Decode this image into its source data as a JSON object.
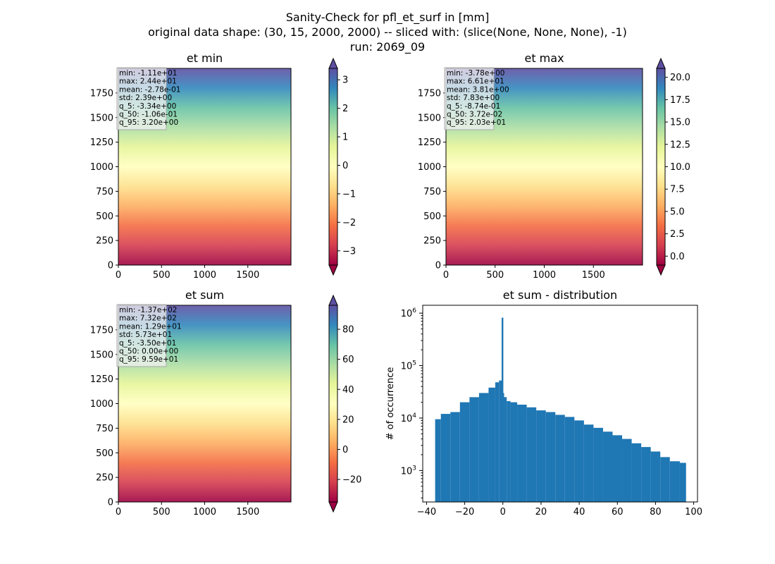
{
  "figure": {
    "suptitle": [
      "Sanity-Check for pfl_et_surf in [mm]",
      "original data shape: (30, 15, 2000, 2000) -- sliced with: (slice(None, None, None), -1)",
      "run: 2069_09"
    ]
  },
  "colors": {
    "colormap": "Spectral",
    "histogram_bar": "#1f77b4",
    "axes": "#000000"
  },
  "chart_data": [
    {
      "type": "heatmap",
      "title": "et min",
      "colormap": "Spectral",
      "xlim": [
        0,
        2000
      ],
      "ylim": [
        0,
        2000
      ],
      "xticks": [
        0,
        500,
        1000,
        1500
      ],
      "yticks": [
        0,
        250,
        500,
        750,
        1000,
        1250,
        1500,
        1750
      ],
      "colorbar": {
        "vmin": -3.5,
        "vmax": 3.4,
        "ticks": [
          -3,
          -2,
          -1,
          0,
          1,
          2,
          3
        ],
        "extend": "both"
      },
      "stats": [
        "min: -1.11e+01",
        "max: 2.44e+01",
        "mean: -2.78e-01",
        "std: 2.39e+00",
        "q_5: -3.34e+00",
        "q_50: -1.06e-01",
        "q_95: 3.20e+00"
      ]
    },
    {
      "type": "heatmap",
      "title": "et max",
      "colormap": "Spectral",
      "xlim": [
        0,
        2000
      ],
      "ylim": [
        0,
        2000
      ],
      "xticks": [
        0,
        500,
        1000,
        1500
      ],
      "yticks": [
        0,
        250,
        500,
        750,
        1000,
        1250,
        1500,
        1750
      ],
      "colorbar": {
        "vmin": -1.0,
        "vmax": 21.0,
        "ticks": [
          0.0,
          2.5,
          5.0,
          7.5,
          10.0,
          12.5,
          15.0,
          17.5,
          20.0
        ],
        "tick_labels": [
          "0.0",
          "2.5",
          "5.0",
          "7.5",
          "10.0",
          "12.5",
          "15.0",
          "17.5",
          "20.0"
        ],
        "extend": "both"
      },
      "stats": [
        "min: -3.78e+00",
        "max: 6.61e+01",
        "mean: 3.81e+00",
        "std: 7.83e+00",
        "q_5: -8.74e-01",
        "q_50: 3.72e-02",
        "q_95: 2.03e+01"
      ]
    },
    {
      "type": "heatmap",
      "title": "et sum",
      "colormap": "Spectral",
      "xlim": [
        0,
        2000
      ],
      "ylim": [
        0,
        2000
      ],
      "xticks": [
        0,
        500,
        1000,
        1500
      ],
      "yticks": [
        0,
        250,
        500,
        750,
        1000,
        1250,
        1500,
        1750
      ],
      "colorbar": {
        "vmin": -35,
        "vmax": 96,
        "ticks": [
          -20,
          0,
          20,
          40,
          60,
          80
        ],
        "extend": "both"
      },
      "stats": [
        "min: -1.37e+02",
        "max: 7.32e+02",
        "mean: 1.29e+01",
        "std: 5.73e+01",
        "q_5: -3.50e+01",
        "q_50: 0.00e+00",
        "q_95: 9.59e+01"
      ]
    },
    {
      "type": "bar",
      "title": "et sum - distribution",
      "ylabel": "# of occurrence",
      "yscale": "log",
      "xlim": [
        -42,
        102
      ],
      "ylim_log10": [
        2.4,
        6.15
      ],
      "xticks": [
        -40,
        -20,
        0,
        20,
        40,
        60,
        80,
        100
      ],
      "yticks": [
        "10^3",
        "10^4",
        "10^5",
        "10^6"
      ],
      "x": [
        -35,
        -30,
        -25,
        -20,
        -15,
        -10,
        -5,
        -3,
        -1,
        -0.2,
        0.3,
        1,
        3,
        5,
        10,
        15,
        20,
        25,
        30,
        35,
        40,
        45,
        50,
        55,
        60,
        65,
        70,
        75,
        80,
        85,
        90,
        95.5
      ],
      "y": [
        9500,
        12000,
        13000,
        20000,
        25000,
        30000,
        38000,
        48000,
        52000,
        820000,
        30000,
        25000,
        21000,
        20000,
        18000,
        16000,
        14000,
        13000,
        11500,
        10500,
        9000,
        7500,
        6500,
        5500,
        4700,
        4000,
        3300,
        2800,
        2300,
        1800,
        1500,
        1400
      ]
    }
  ]
}
